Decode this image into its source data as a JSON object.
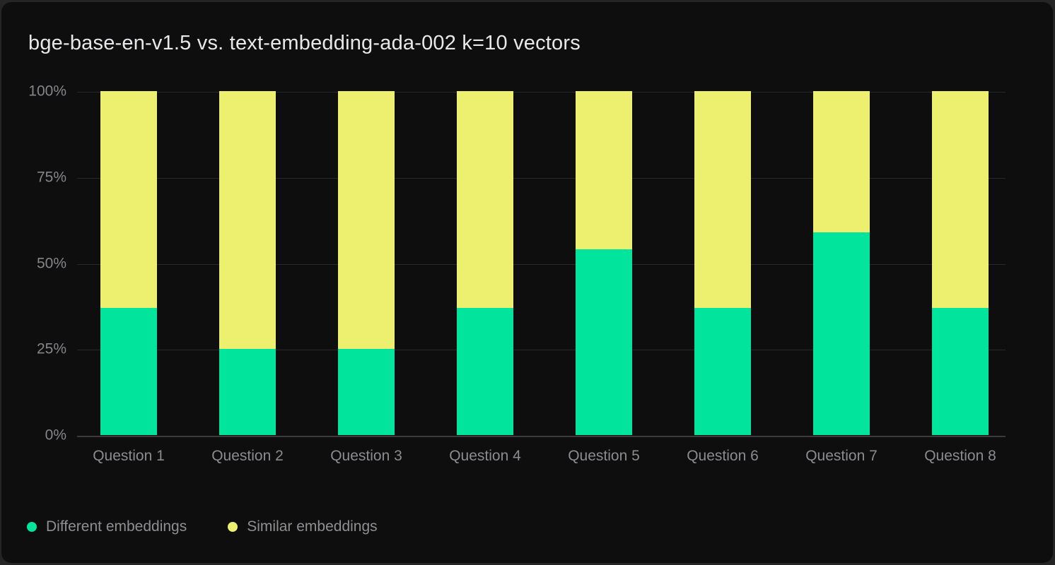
{
  "title": "bge-base-en-v1.5 vs. text-embedding-ada-002 k=10 vectors",
  "chart_data": {
    "type": "bar",
    "stacked": true,
    "title": "bge-base-en-v1.5 vs. text-embedding-ada-002 k=10 vectors",
    "categories": [
      "Question 1",
      "Question 2",
      "Question 3",
      "Question 4",
      "Question 5",
      "Question 6",
      "Question 7",
      "Question 8"
    ],
    "series": [
      {
        "name": "Different embeddings",
        "color": "#00e49b",
        "values": [
          37,
          25,
          25,
          37,
          54,
          37,
          59,
          37
        ]
      },
      {
        "name": "Similar embeddings",
        "color": "#edf06e",
        "values": [
          63,
          75,
          75,
          63,
          46,
          63,
          41,
          63
        ]
      }
    ],
    "xlabel": "",
    "ylabel": "",
    "ylim": [
      0,
      100
    ],
    "yticks": [
      {
        "value": 0,
        "label": "0%"
      },
      {
        "value": 25,
        "label": "25%"
      },
      {
        "value": 50,
        "label": "50%"
      },
      {
        "value": 75,
        "label": "75%"
      },
      {
        "value": 100,
        "label": "100%"
      }
    ],
    "grid": true,
    "legend_position": "bottom"
  },
  "legend": {
    "items": [
      {
        "label": "Different embeddings",
        "color": "#00e49b"
      },
      {
        "label": "Similar embeddings",
        "color": "#edf06e"
      }
    ]
  }
}
